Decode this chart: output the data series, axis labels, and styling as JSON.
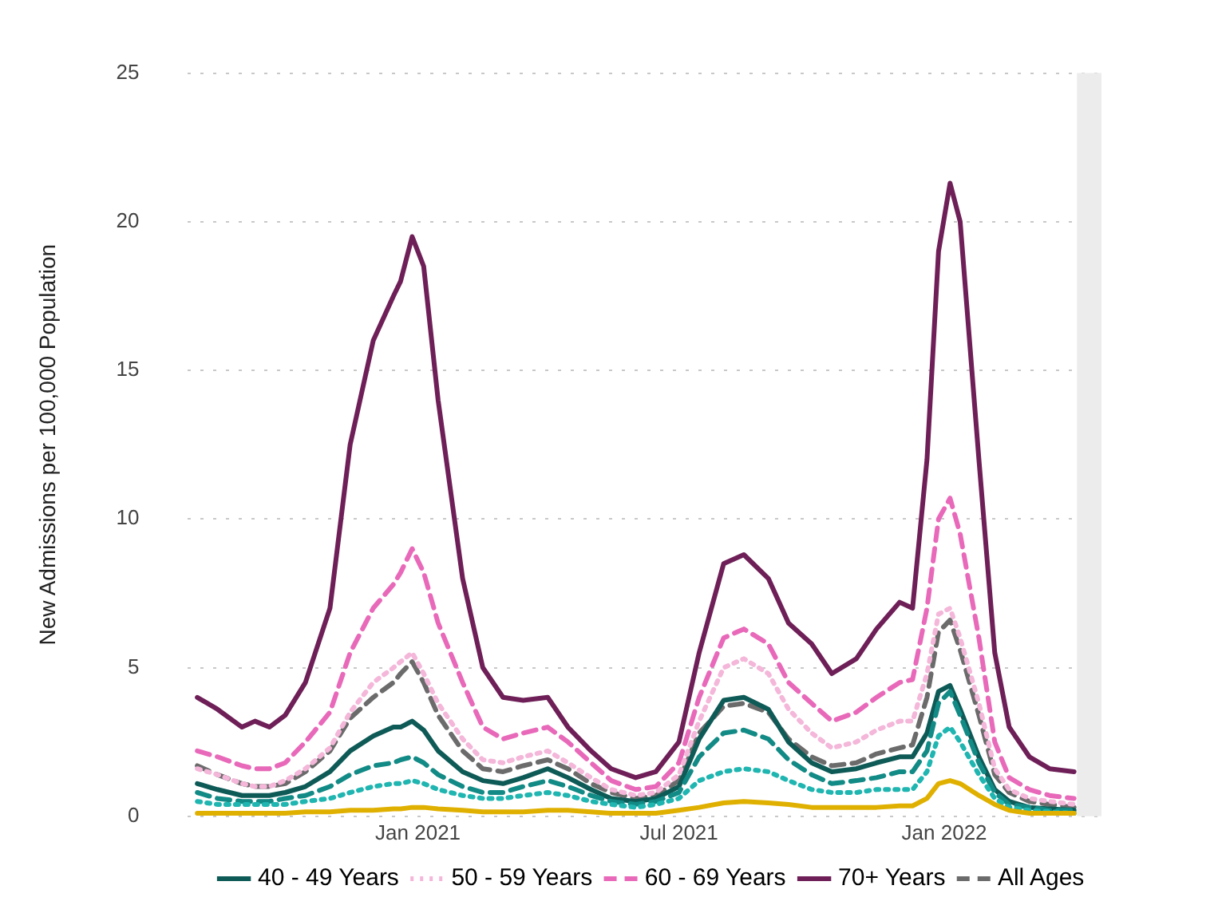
{
  "chart_data": {
    "type": "line",
    "ylabel": "New Admissions per 100,000 Population",
    "x": [
      "2020-08-01",
      "2020-08-15",
      "2020-09-01",
      "2020-09-10",
      "2020-09-20",
      "2020-10-01",
      "2020-10-15",
      "2020-11-01",
      "2020-11-15",
      "2020-12-01",
      "2020-12-15",
      "2020-12-20",
      "2020-12-28",
      "2021-01-05",
      "2021-01-15",
      "2021-02-01",
      "2021-02-15",
      "2021-03-01",
      "2021-03-15",
      "2021-04-01",
      "2021-04-15",
      "2021-05-01",
      "2021-05-15",
      "2021-06-01",
      "2021-06-15",
      "2021-07-01",
      "2021-07-15",
      "2021-08-01",
      "2021-08-15",
      "2021-09-01",
      "2021-09-15",
      "2021-10-01",
      "2021-10-15",
      "2021-11-01",
      "2021-11-15",
      "2021-12-01",
      "2021-12-10",
      "2021-12-20",
      "2021-12-28",
      "2022-01-05",
      "2022-01-12",
      "2022-01-25",
      "2022-02-05",
      "2022-02-15",
      "2022-03-01",
      "2022-03-15",
      "2022-04-01"
    ],
    "series": [
      {
        "color": "#e0b000",
        "line_style": "solid",
        "values": [
          0.1,
          0.1,
          0.1,
          0.1,
          0.1,
          0.1,
          0.15,
          0.15,
          0.2,
          0.2,
          0.25,
          0.25,
          0.3,
          0.3,
          0.25,
          0.2,
          0.15,
          0.15,
          0.15,
          0.2,
          0.2,
          0.15,
          0.1,
          0.1,
          0.1,
          0.2,
          0.3,
          0.45,
          0.5,
          0.45,
          0.4,
          0.3,
          0.3,
          0.3,
          0.3,
          0.35,
          0.35,
          0.6,
          1.1,
          1.2,
          1.1,
          0.7,
          0.4,
          0.2,
          0.1,
          0.1,
          0.1
        ]
      },
      {
        "color": "#1fb5b0",
        "line_style": "dotted",
        "values": [
          0.5,
          0.4,
          0.4,
          0.4,
          0.4,
          0.4,
          0.5,
          0.6,
          0.8,
          1.0,
          1.1,
          1.1,
          1.2,
          1.1,
          0.9,
          0.7,
          0.6,
          0.6,
          0.7,
          0.8,
          0.7,
          0.5,
          0.4,
          0.3,
          0.4,
          0.6,
          1.2,
          1.5,
          1.6,
          1.5,
          1.2,
          0.9,
          0.8,
          0.8,
          0.9,
          0.9,
          0.9,
          1.5,
          2.7,
          3.0,
          2.5,
          1.4,
          0.6,
          0.3,
          0.2,
          0.15,
          0.1
        ]
      },
      {
        "color": "#128a85",
        "line_style": "dashed",
        "values": [
          0.8,
          0.6,
          0.5,
          0.5,
          0.5,
          0.6,
          0.7,
          1.0,
          1.4,
          1.7,
          1.8,
          1.9,
          2.0,
          1.8,
          1.4,
          1.0,
          0.8,
          0.8,
          1.0,
          1.2,
          1.0,
          0.7,
          0.5,
          0.4,
          0.5,
          0.8,
          2.0,
          2.8,
          2.9,
          2.6,
          1.9,
          1.4,
          1.1,
          1.2,
          1.3,
          1.5,
          1.5,
          2.2,
          3.8,
          4.2,
          3.4,
          1.8,
          0.8,
          0.4,
          0.3,
          0.2,
          0.2
        ]
      },
      {
        "name": "40 - 49 Years",
        "color": "#0e5a57",
        "line_style": "solid",
        "values": [
          1.1,
          0.9,
          0.7,
          0.7,
          0.7,
          0.8,
          1.0,
          1.5,
          2.2,
          2.7,
          3.0,
          3.0,
          3.2,
          2.9,
          2.2,
          1.5,
          1.2,
          1.1,
          1.3,
          1.6,
          1.3,
          0.9,
          0.6,
          0.5,
          0.6,
          1.0,
          2.6,
          3.9,
          4.0,
          3.6,
          2.5,
          1.8,
          1.5,
          1.6,
          1.8,
          2.0,
          2.0,
          2.8,
          4.2,
          4.4,
          3.6,
          2.0,
          0.9,
          0.5,
          0.3,
          0.25,
          0.2
        ]
      },
      {
        "name": "50 - 59 Years",
        "color": "#f4b6d9",
        "line_style": "dotted",
        "values": [
          1.6,
          1.4,
          1.1,
          1.0,
          1.0,
          1.2,
          1.6,
          2.3,
          3.5,
          4.5,
          5.0,
          5.2,
          5.5,
          4.8,
          3.8,
          2.6,
          1.9,
          1.8,
          2.0,
          2.2,
          1.8,
          1.3,
          0.9,
          0.7,
          0.8,
          1.4,
          3.2,
          5.0,
          5.3,
          4.8,
          3.6,
          2.8,
          2.3,
          2.5,
          2.9,
          3.2,
          3.2,
          4.8,
          6.8,
          7.0,
          6.0,
          3.8,
          1.6,
          0.9,
          0.6,
          0.5,
          0.4
        ]
      },
      {
        "name": "60 - 69 Years",
        "color": "#e869b9",
        "line_style": "dashed",
        "values": [
          2.2,
          2.0,
          1.7,
          1.6,
          1.6,
          1.8,
          2.5,
          3.5,
          5.5,
          7.0,
          7.8,
          8.2,
          9.0,
          8.2,
          6.5,
          4.5,
          3.0,
          2.6,
          2.8,
          3.0,
          2.5,
          1.8,
          1.2,
          0.9,
          1.0,
          1.8,
          4.0,
          6.0,
          6.3,
          5.8,
          4.5,
          3.8,
          3.2,
          3.5,
          4.0,
          4.5,
          4.6,
          7.0,
          10.0,
          10.7,
          9.5,
          6.0,
          2.5,
          1.3,
          0.9,
          0.7,
          0.6
        ]
      },
      {
        "name": "70+ Years",
        "color": "#6e1f57",
        "line_style": "solid",
        "values": [
          4.0,
          3.6,
          3.0,
          3.2,
          3.0,
          3.4,
          4.5,
          7.0,
          12.5,
          16,
          17.5,
          18,
          19.5,
          18.5,
          14,
          8,
          5.0,
          4.0,
          3.9,
          4.0,
          3.0,
          2.2,
          1.6,
          1.3,
          1.5,
          2.5,
          5.5,
          8.5,
          8.8,
          8.0,
          6.5,
          5.8,
          4.8,
          5.3,
          6.3,
          7.2,
          7.0,
          12,
          19,
          21.3,
          20,
          12,
          5.5,
          3.0,
          2.0,
          1.6,
          1.5
        ]
      },
      {
        "name": "All Ages",
        "color": "#6b6b6b",
        "line_style": "dashed",
        "values": [
          1.7,
          1.4,
          1.1,
          1.0,
          1.0,
          1.1,
          1.5,
          2.2,
          3.3,
          4.0,
          4.5,
          4.8,
          5.2,
          4.5,
          3.4,
          2.2,
          1.6,
          1.5,
          1.7,
          1.9,
          1.6,
          1.1,
          0.8,
          0.6,
          0.7,
          1.2,
          2.8,
          3.7,
          3.8,
          3.5,
          2.6,
          2.0,
          1.7,
          1.8,
          2.1,
          2.3,
          2.4,
          4.0,
          6.2,
          6.6,
          5.6,
          3.4,
          1.4,
          0.8,
          0.5,
          0.4,
          0.3
        ]
      }
    ],
    "xlim": [
      "2020-07-25",
      "2022-04-20"
    ],
    "xticks": [
      {
        "value": "2021-01-01",
        "label": "Jan 2021"
      },
      {
        "value": "2021-07-01",
        "label": "Jul 2021"
      },
      {
        "value": "2022-01-01",
        "label": "Jan 2022"
      }
    ],
    "ylim": [
      0,
      25
    ],
    "yticks": [
      0,
      5,
      10,
      15,
      20,
      25
    ],
    "bands": [
      {
        "axis": "x",
        "from": "2022-04-03",
        "to": "2022-04-20",
        "color": "#ececec"
      }
    ],
    "grid": "y",
    "legend": "bottom",
    "marker": "none"
  }
}
